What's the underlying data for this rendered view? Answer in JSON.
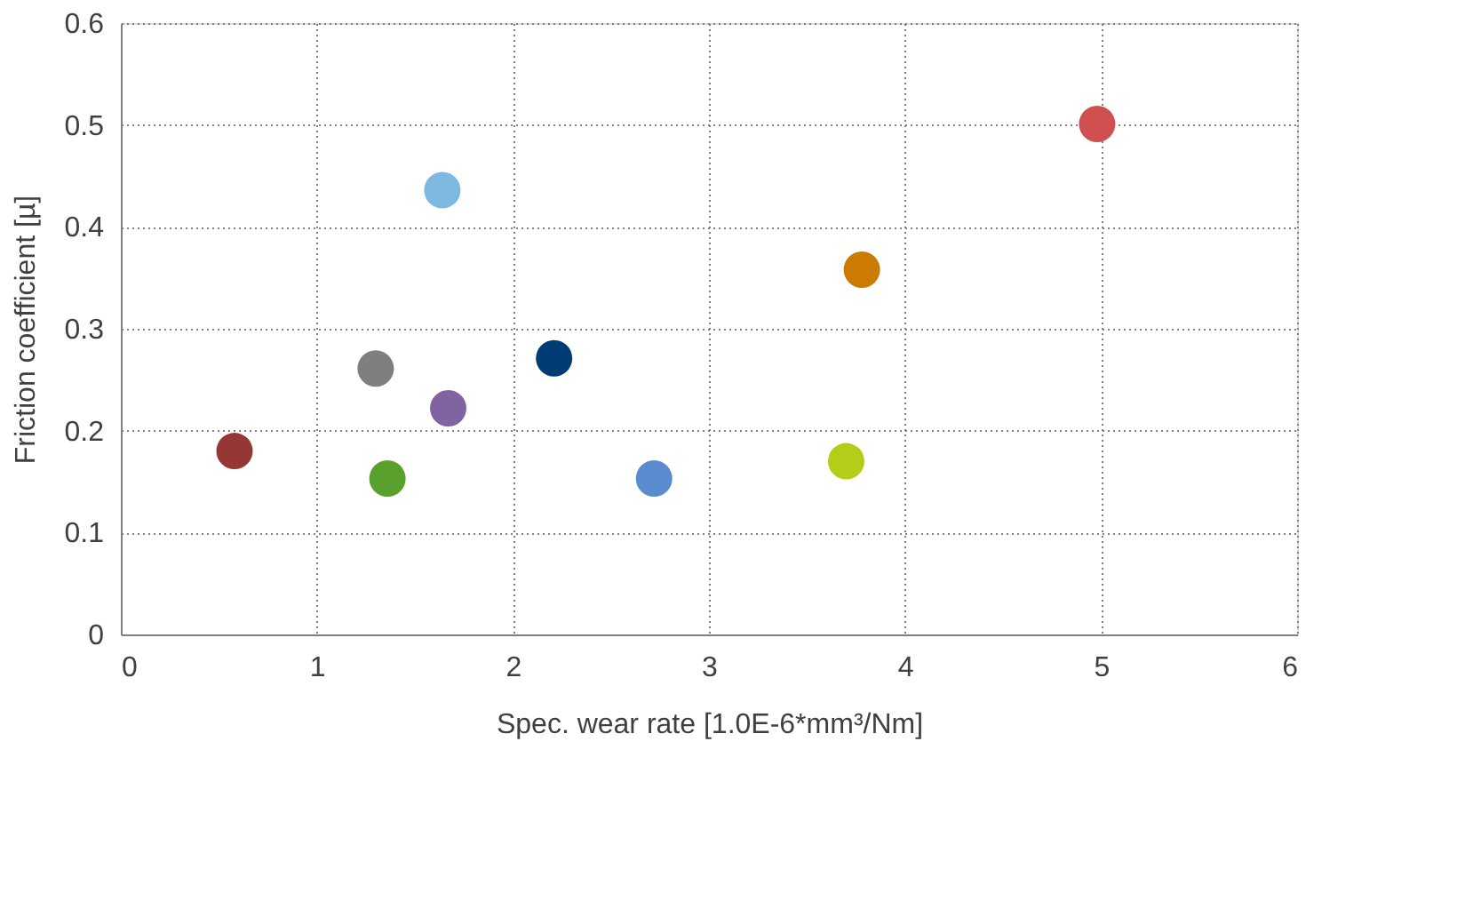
{
  "chart_data": {
    "type": "scatter",
    "xlabel": "Spec. wear rate [1.0E-6*mm³/Nm]",
    "ylabel": "Friction coefficient [µ]",
    "x": [
      0.58,
      1.36,
      1.3,
      1.64,
      1.67,
      2.21,
      2.72,
      3.7,
      3.78,
      4.98
    ],
    "values": [
      0.18,
      0.153,
      0.261,
      0.436,
      0.222,
      0.271,
      0.153,
      0.17,
      0.358,
      0.501
    ],
    "colors": [
      "#953735",
      "#5aa02c",
      "#7f7f7f",
      "#7fb8e0",
      "#8064a2",
      "#003b73",
      "#5b8bcf",
      "#b5cc18",
      "#cc7a00",
      "#d0504f"
    ],
    "xlim": [
      0,
      6
    ],
    "xticks": [
      0,
      1,
      2,
      3,
      4,
      5,
      6
    ],
    "ylim": [
      0,
      0.6
    ],
    "yticks": [
      0,
      0.1,
      0.2,
      0.3,
      0.4,
      0.5,
      0.6
    ],
    "grid": true,
    "marker": "circle",
    "legend": false
  }
}
